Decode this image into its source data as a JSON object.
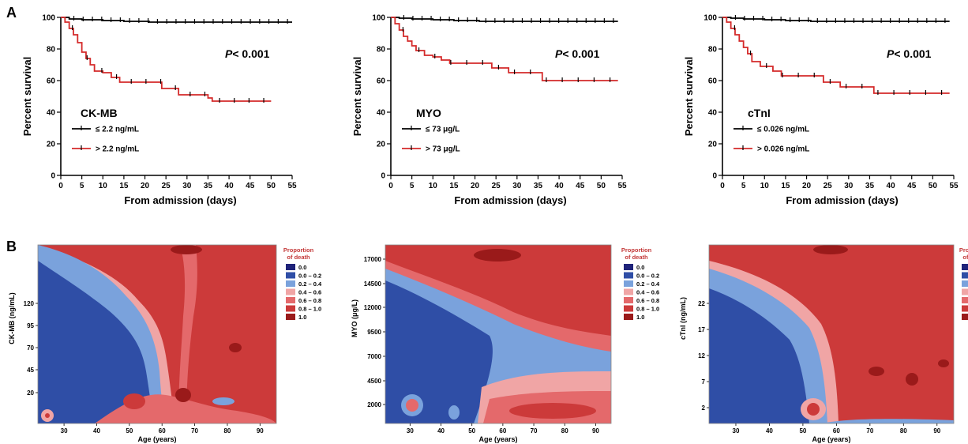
{
  "panel_labels": {
    "a": "A",
    "b": "B"
  },
  "colors": {
    "high_group": "#d42a2a",
    "low_group": "#000000",
    "heat_levels": [
      "#1f237a",
      "#2f4ea6",
      "#7aa2dc",
      "#f0a5a5",
      "#e4696b",
      "#cc3a3a",
      "#9a1a1a"
    ]
  },
  "survival_common": {
    "ylabel": "Percent survival",
    "xlabel": "From admission (days)",
    "xticks": [
      "0",
      "5",
      "10",
      "15",
      "20",
      "25",
      "30",
      "35",
      "40",
      "45",
      "50",
      "55"
    ],
    "yticks": [
      "0",
      "20",
      "40",
      "60",
      "80",
      "100"
    ],
    "p_prefix": "P",
    "p_value": "< 0.001"
  },
  "heatmap_legend": {
    "title_line1": "Proportion",
    "title_line2": "of death",
    "levels": [
      "0.0",
      "0.0 – 0.2",
      "0.2 – 0.4",
      "0.4 – 0.6",
      "0.6 – 0.8",
      "0.8 – 1.0",
      "1.0"
    ]
  },
  "heatmap_common": {
    "xlabel": "Age (years)",
    "xticks": [
      "30",
      "40",
      "50",
      "60",
      "70",
      "80",
      "90"
    ]
  },
  "chart_data": [
    {
      "type": "line",
      "marker": "CK-MB",
      "xlim": [
        0,
        55
      ],
      "ylim": [
        0,
        100
      ],
      "series": [
        {
          "name": "≤ 2.2 ng/mL",
          "x": [
            0,
            2,
            5,
            10,
            15,
            21,
            55
          ],
          "y": [
            100,
            99,
            98.5,
            98,
            97.5,
            97,
            97
          ]
        },
        {
          "name": "> 2.2 ng/mL",
          "x": [
            0,
            1,
            2,
            3,
            4,
            5,
            6,
            7,
            8,
            10,
            12,
            14,
            24,
            28,
            35,
            36,
            50
          ],
          "y": [
            100,
            97,
            93,
            89,
            84,
            78,
            74,
            70,
            66,
            65,
            62,
            59,
            55,
            51,
            49,
            47,
            47
          ]
        }
      ]
    },
    {
      "type": "line",
      "marker": "MYO",
      "xlim": [
        0,
        55
      ],
      "ylim": [
        0,
        100
      ],
      "series": [
        {
          "name": "≤ 73 μg/L",
          "x": [
            0,
            2,
            5,
            10,
            15,
            21,
            54
          ],
          "y": [
            100,
            99.5,
            99,
            98.5,
            98,
            97.5,
            97.5
          ]
        },
        {
          "name": "> 73 μg/L",
          "x": [
            0,
            1,
            2,
            3,
            4,
            5,
            6,
            8,
            10,
            12,
            14,
            24,
            28,
            36,
            54
          ],
          "y": [
            100,
            96,
            92,
            88,
            85,
            82,
            79,
            76,
            75,
            73,
            71,
            68,
            65,
            60,
            60
          ]
        }
      ]
    },
    {
      "type": "line",
      "marker": "cTnI",
      "xlim": [
        0,
        55
      ],
      "ylim": [
        0,
        100
      ],
      "series": [
        {
          "name": "≤ 0.026 ng/mL",
          "x": [
            0,
            2,
            5,
            10,
            15,
            21,
            54
          ],
          "y": [
            100,
            99.5,
            99,
            98.5,
            98,
            97.5,
            97.5
          ]
        },
        {
          "name": "> 0.026 ng/mL",
          "x": [
            0,
            1,
            2,
            3,
            4,
            5,
            6,
            7,
            9,
            12,
            14,
            24,
            28,
            36,
            54
          ],
          "y": [
            100,
            97,
            93,
            89,
            85,
            81,
            77,
            72,
            69,
            66,
            63,
            59,
            56,
            52,
            52
          ]
        }
      ]
    },
    {
      "type": "heatmap",
      "ylabel": "CK-MB (ng/mL)",
      "yticks": [
        "20",
        "45",
        "70",
        "95",
        "120"
      ]
    },
    {
      "type": "heatmap",
      "ylabel": "MYO (μg/L)",
      "yticks": [
        "2000",
        "4500",
        "7000",
        "9500",
        "12000",
        "14500",
        "17000"
      ]
    },
    {
      "type": "heatmap",
      "ylabel": "cTnI (ng/mL)",
      "yticks": [
        "2",
        "7",
        "12",
        "17",
        "22"
      ]
    }
  ]
}
